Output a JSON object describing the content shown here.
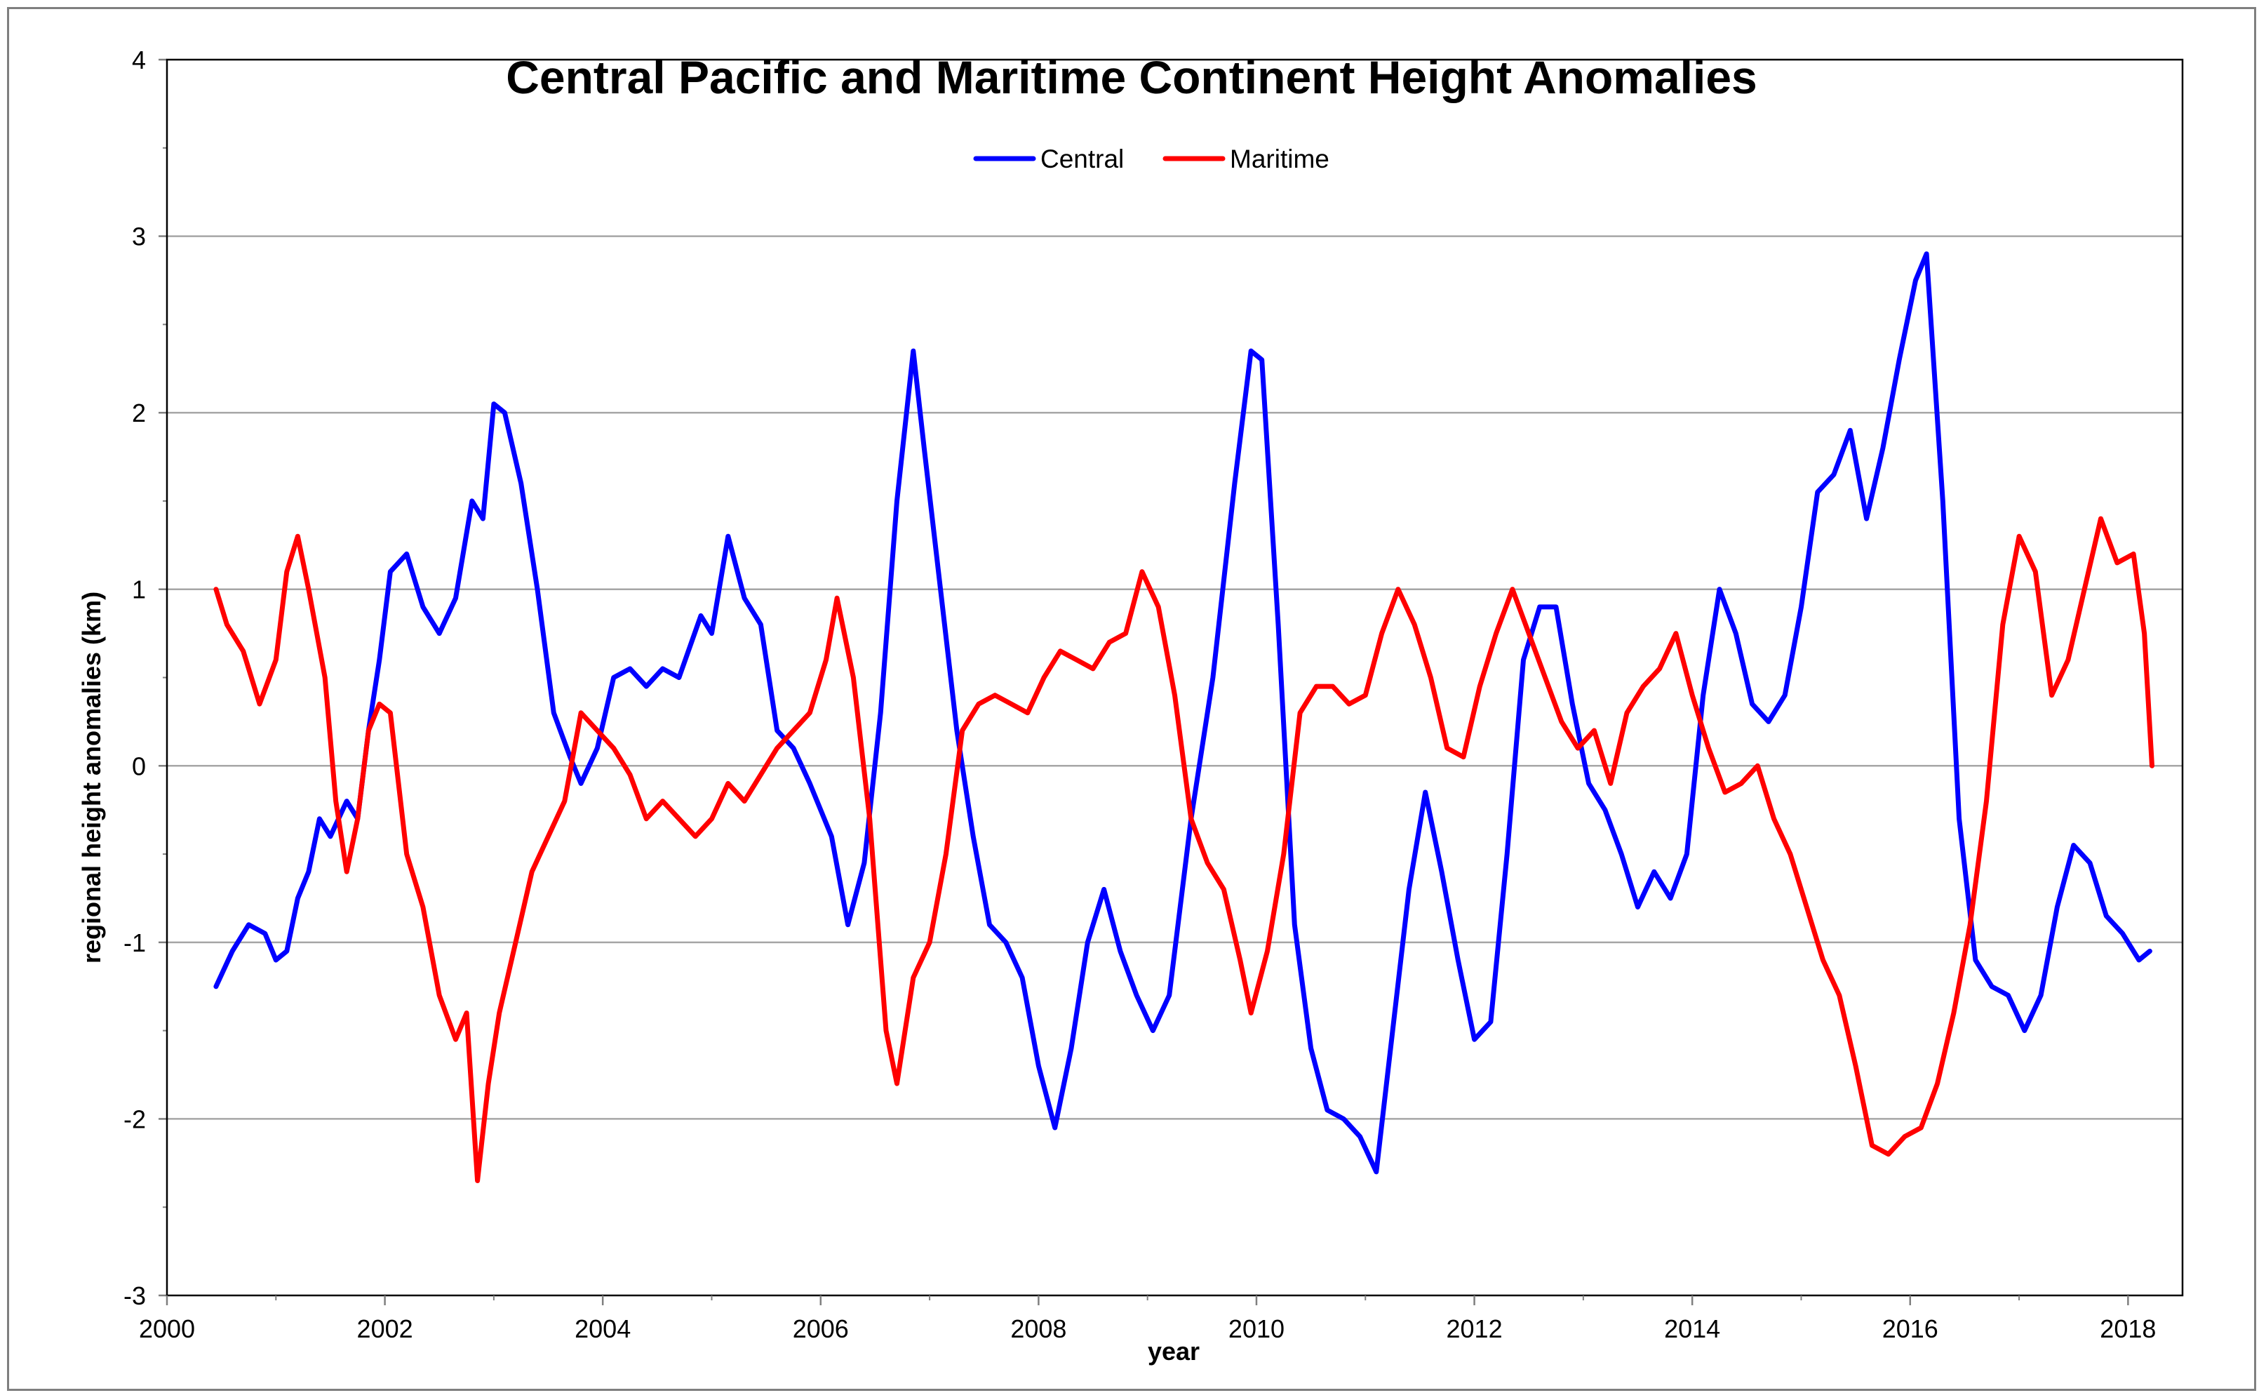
{
  "chart_data": {
    "type": "line",
    "title": "Central Pacific and Maritime Continent Height Anomalies",
    "xlabel": "year",
    "ylabel": "regional height anomalies (km)",
    "xlim": [
      2000,
      2018.5
    ],
    "ylim": [
      -3,
      4
    ],
    "x_ticks": [
      2000,
      2002,
      2004,
      2006,
      2008,
      2010,
      2012,
      2014,
      2016,
      2018
    ],
    "y_ticks": [
      -3,
      -2,
      -1,
      0,
      1,
      2,
      3,
      4
    ],
    "gridlines": "horizontal",
    "legend_position": "top-center",
    "series": [
      {
        "name": "Central",
        "color": "#0000ff",
        "x": [
          2000.45,
          2000.6,
          2000.75,
          2000.9,
          2001.0,
          2001.1,
          2001.2,
          2001.3,
          2001.4,
          2001.5,
          2001.65,
          2001.75,
          2001.85,
          2001.95,
          2002.05,
          2002.2,
          2002.35,
          2002.5,
          2002.65,
          2002.8,
          2002.9,
          2003.0,
          2003.1,
          2003.25,
          2003.4,
          2003.55,
          2003.7,
          2003.8,
          2003.95,
          2004.1,
          2004.25,
          2004.4,
          2004.55,
          2004.7,
          2004.9,
          2005.0,
          2005.15,
          2005.3,
          2005.45,
          2005.6,
          2005.75,
          2005.9,
          2006.1,
          2006.25,
          2006.4,
          2006.55,
          2006.7,
          2006.85,
          2006.95,
          2007.1,
          2007.25,
          2007.4,
          2007.55,
          2007.7,
          2007.85,
          2008.0,
          2008.15,
          2008.3,
          2008.45,
          2008.6,
          2008.75,
          2008.9,
          2009.05,
          2009.2,
          2009.4,
          2009.6,
          2009.8,
          2009.95,
          2010.05,
          2010.2,
          2010.35,
          2010.5,
          2010.65,
          2010.8,
          2010.95,
          2011.1,
          2011.25,
          2011.4,
          2011.55,
          2011.7,
          2011.85,
          2012.0,
          2012.15,
          2012.3,
          2012.45,
          2012.6,
          2012.75,
          2012.9,
          2013.05,
          2013.2,
          2013.35,
          2013.5,
          2013.65,
          2013.8,
          2013.95,
          2014.1,
          2014.25,
          2014.4,
          2014.55,
          2014.7,
          2014.85,
          2015.0,
          2015.15,
          2015.3,
          2015.45,
          2015.6,
          2015.75,
          2015.9,
          2016.05,
          2016.15,
          2016.3,
          2016.45,
          2016.6,
          2016.75,
          2016.9,
          2017.05,
          2017.2,
          2017.35,
          2017.5,
          2017.65,
          2017.8,
          2017.95,
          2018.1,
          2018.2
        ],
        "y": [
          -1.25,
          -1.05,
          -0.9,
          -0.95,
          -1.1,
          -1.05,
          -0.75,
          -0.6,
          -0.3,
          -0.4,
          -0.2,
          -0.3,
          0.2,
          0.6,
          1.1,
          1.2,
          0.9,
          0.75,
          0.95,
          1.5,
          1.4,
          2.05,
          2.0,
          1.6,
          1.0,
          0.3,
          0.05,
          -0.1,
          0.1,
          0.5,
          0.55,
          0.45,
          0.55,
          0.5,
          0.85,
          0.75,
          1.3,
          0.95,
          0.8,
          0.2,
          0.1,
          -0.1,
          -0.4,
          -0.9,
          -0.55,
          0.3,
          1.5,
          2.35,
          1.8,
          1.0,
          0.2,
          -0.4,
          -0.9,
          -1.0,
          -1.2,
          -1.7,
          -2.05,
          -1.6,
          -1.0,
          -0.7,
          -1.05,
          -1.3,
          -1.5,
          -1.3,
          -0.3,
          0.5,
          1.6,
          2.35,
          2.3,
          0.8,
          -0.9,
          -1.6,
          -1.95,
          -2.0,
          -2.1,
          -2.3,
          -1.5,
          -0.7,
          -0.15,
          -0.6,
          -1.1,
          -1.55,
          -1.45,
          -0.5,
          0.6,
          0.9,
          0.9,
          0.35,
          -0.1,
          -0.25,
          -0.5,
          -0.8,
          -0.6,
          -0.75,
          -0.5,
          0.4,
          1.0,
          0.75,
          0.35,
          0.25,
          0.4,
          0.9,
          1.55,
          1.65,
          1.9,
          1.4,
          1.8,
          2.3,
          2.75,
          2.9,
          1.5,
          -0.3,
          -1.1,
          -1.25,
          -1.3,
          -1.5,
          -1.3,
          -0.8,
          -0.45,
          -0.55,
          -0.85,
          -0.95,
          -1.1,
          -1.05
        ]
      },
      {
        "name": "Maritime",
        "color": "#ff0000",
        "x": [
          2000.45,
          2000.55,
          2000.7,
          2000.85,
          2001.0,
          2001.1,
          2001.2,
          2001.3,
          2001.45,
          2001.55,
          2001.65,
          2001.75,
          2001.85,
          2001.95,
          2002.05,
          2002.2,
          2002.35,
          2002.5,
          2002.65,
          2002.75,
          2002.85,
          2002.95,
          2003.05,
          2003.2,
          2003.35,
          2003.5,
          2003.65,
          2003.8,
          2003.95,
          2004.1,
          2004.25,
          2004.4,
          2004.55,
          2004.7,
          2004.85,
          2005.0,
          2005.15,
          2005.3,
          2005.45,
          2005.6,
          2005.75,
          2005.9,
          2006.05,
          2006.15,
          2006.3,
          2006.45,
          2006.6,
          2006.7,
          2006.85,
          2007.0,
          2007.15,
          2007.3,
          2007.45,
          2007.6,
          2007.75,
          2007.9,
          2008.05,
          2008.2,
          2008.35,
          2008.5,
          2008.65,
          2008.8,
          2008.95,
          2009.1,
          2009.25,
          2009.4,
          2009.55,
          2009.7,
          2009.85,
          2009.95,
          2010.1,
          2010.25,
          2010.4,
          2010.55,
          2010.7,
          2010.85,
          2011.0,
          2011.15,
          2011.3,
          2011.45,
          2011.6,
          2011.75,
          2011.9,
          2012.05,
          2012.2,
          2012.35,
          2012.5,
          2012.65,
          2012.8,
          2012.95,
          2013.1,
          2013.25,
          2013.4,
          2013.55,
          2013.7,
          2013.85,
          2014.0,
          2014.15,
          2014.3,
          2014.45,
          2014.6,
          2014.75,
          2014.9,
          2015.05,
          2015.2,
          2015.35,
          2015.5,
          2015.65,
          2015.8,
          2015.95,
          2016.1,
          2016.25,
          2016.4,
          2016.55,
          2016.7,
          2016.85,
          2017.0,
          2017.15,
          2017.3,
          2017.45,
          2017.6,
          2017.75,
          2017.9,
          2018.05,
          2018.15,
          2018.22
        ],
        "y": [
          1.0,
          0.8,
          0.65,
          0.35,
          0.6,
          1.1,
          1.3,
          1.0,
          0.5,
          -0.2,
          -0.6,
          -0.3,
          0.2,
          0.35,
          0.3,
          -0.5,
          -0.8,
          -1.3,
          -1.55,
          -1.4,
          -2.35,
          -1.8,
          -1.4,
          -1.0,
          -0.6,
          -0.4,
          -0.2,
          0.3,
          0.2,
          0.1,
          -0.05,
          -0.3,
          -0.2,
          -0.3,
          -0.4,
          -0.3,
          -0.1,
          -0.2,
          -0.05,
          0.1,
          0.2,
          0.3,
          0.6,
          0.95,
          0.5,
          -0.3,
          -1.5,
          -1.8,
          -1.2,
          -1.0,
          -0.5,
          0.2,
          0.35,
          0.4,
          0.35,
          0.3,
          0.5,
          0.65,
          0.6,
          0.55,
          0.7,
          0.75,
          1.1,
          0.9,
          0.4,
          -0.3,
          -0.55,
          -0.7,
          -1.1,
          -1.4,
          -1.05,
          -0.5,
          0.3,
          0.45,
          0.45,
          0.35,
          0.4,
          0.75,
          1.0,
          0.8,
          0.5,
          0.1,
          0.05,
          0.45,
          0.75,
          1.0,
          0.75,
          0.5,
          0.25,
          0.1,
          0.2,
          -0.1,
          0.3,
          0.45,
          0.55,
          0.75,
          0.4,
          0.1,
          -0.15,
          -0.1,
          0.0,
          -0.3,
          -0.5,
          -0.8,
          -1.1,
          -1.3,
          -1.7,
          -2.15,
          -2.2,
          -2.1,
          -2.05,
          -1.8,
          -1.4,
          -0.9,
          -0.2,
          0.8,
          1.3,
          1.1,
          0.4,
          0.6,
          1.0,
          1.4,
          1.15,
          1.2,
          0.75,
          0.0
        ]
      }
    ]
  }
}
